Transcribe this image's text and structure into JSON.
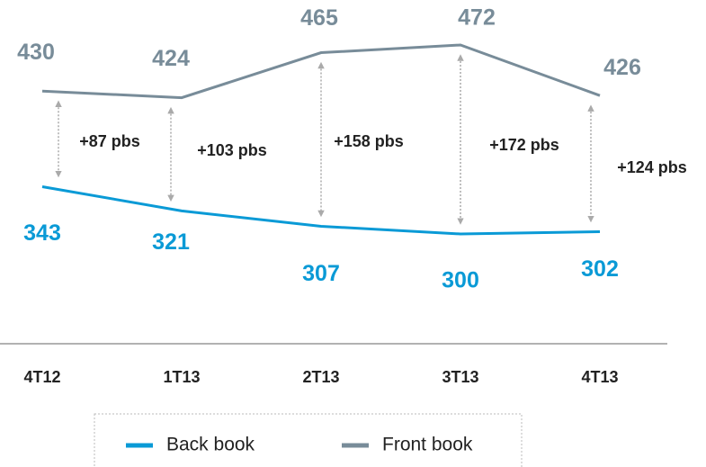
{
  "chart_data": {
    "type": "line",
    "categories": [
      "4T12",
      "1T13",
      "2T13",
      "3T13",
      "4T13"
    ],
    "series": [
      {
        "name": "Back book",
        "color": "#0a9ad6",
        "values": [
          343,
          321,
          307,
          300,
          302
        ]
      },
      {
        "name": "Front book",
        "color": "#788c99",
        "values": [
          430,
          424,
          465,
          472,
          426
        ]
      }
    ],
    "annotations": [
      "+87 pbs",
      "+103 pbs",
      "+158 pbs",
      "+172 pbs",
      "+124 pbs"
    ],
    "legend": "bottom"
  }
}
